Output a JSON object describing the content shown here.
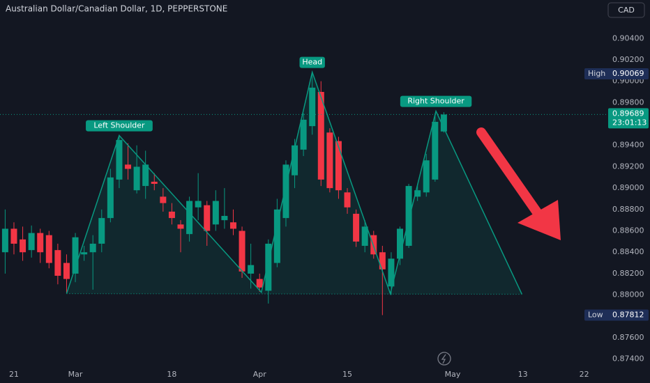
{
  "chart_data": {
    "type": "candlestick",
    "title": "Australian Dollar/Canadian Dollar, 1D, PEPPERSTONE",
    "currency": "CAD",
    "categories": [
      null,
      "21",
      null,
      null,
      null,
      null,
      null,
      null,
      "Mar",
      null,
      null,
      null,
      null,
      null,
      null,
      null,
      null,
      null,
      null,
      "18",
      null,
      null,
      null,
      null,
      null,
      null,
      null,
      null,
      null,
      "Apr",
      null,
      null,
      null,
      null,
      null,
      null,
      null,
      null,
      null,
      "15",
      null,
      null,
      null,
      null,
      null,
      null,
      null,
      null,
      null,
      null,
      null,
      "May",
      null,
      null,
      null,
      null,
      null,
      null,
      null,
      "13",
      null,
      null,
      null,
      null,
      null,
      null,
      "22"
    ],
    "open": [
      0.884,
      0.8862,
      0.8852,
      0.8842,
      0.8858,
      0.8856,
      0.8842,
      0.883,
      0.882,
      0.8838,
      0.884,
      0.8848,
      0.8872,
      0.8908,
      0.8922,
      0.8898,
      0.8902,
      0.8906,
      0.8892,
      0.8878,
      0.8866,
      0.8857,
      0.8882,
      0.8884,
      0.8866,
      0.887,
      0.8868,
      0.886,
      0.882,
      0.8815,
      0.8804,
      0.883,
      0.8872,
      0.8912,
      0.8936,
      0.8958,
      0.899,
      0.8952,
      0.8944,
      0.8896,
      0.8876,
      0.8846,
      0.8856,
      0.884,
      0.8808,
      0.8834,
      0.8846,
      0.8892,
      0.8896,
      0.8908,
      0.8953,
      null,
      null,
      null,
      null,
      null,
      null,
      null,
      null,
      null,
      null,
      null,
      null,
      null,
      null,
      null,
      null
    ],
    "high": [
      0.888,
      0.8868,
      0.8864,
      0.8865,
      0.8862,
      0.886,
      0.8848,
      0.8838,
      0.8858,
      0.8846,
      0.8856,
      0.888,
      0.8918,
      0.895,
      0.8942,
      0.894,
      0.8935,
      0.8914,
      0.89,
      0.8886,
      0.887,
      0.8892,
      0.8914,
      0.8888,
      0.8898,
      0.89,
      0.888,
      0.8864,
      0.8848,
      0.882,
      0.8852,
      0.889,
      0.8926,
      0.8946,
      0.897,
      0.90069,
      0.9,
      0.8956,
      0.8948,
      0.89,
      0.888,
      0.887,
      0.886,
      0.8846,
      0.884,
      0.8864,
      0.8904,
      0.8904,
      0.8932,
      0.897,
      0.8971,
      null,
      null,
      null,
      null,
      null,
      null,
      null,
      null,
      null,
      null,
      null,
      null,
      null,
      null,
      null,
      null
    ],
    "low": [
      0.882,
      0.8838,
      0.8832,
      0.8835,
      0.883,
      0.8825,
      0.881,
      0.8802,
      0.8812,
      0.8832,
      0.8805,
      0.884,
      0.8868,
      0.89,
      0.8908,
      0.8895,
      0.889,
      0.8898,
      0.8878,
      0.8866,
      0.884,
      0.885,
      0.887,
      0.8846,
      0.886,
      0.8862,
      0.8856,
      0.8816,
      0.8806,
      0.8803,
      0.8792,
      0.8826,
      0.8864,
      0.89,
      0.893,
      0.895,
      0.8902,
      0.8896,
      0.889,
      0.8876,
      0.8845,
      0.884,
      0.8834,
      0.87812,
      0.88,
      0.8828,
      0.8844,
      0.8888,
      0.8892,
      0.8906,
      0.8952,
      null,
      null,
      null,
      null,
      null,
      null,
      null,
      null,
      null,
      null,
      null,
      null,
      null,
      null,
      null,
      null
    ],
    "close": [
      0.8862,
      0.8848,
      0.884,
      0.8858,
      0.884,
      0.883,
      0.8818,
      0.8815,
      0.8854,
      0.884,
      0.8848,
      0.8872,
      0.891,
      0.8945,
      0.8918,
      0.892,
      0.8922,
      0.8904,
      0.8886,
      0.8872,
      0.8862,
      0.8888,
      0.8888,
      0.886,
      0.8888,
      0.8874,
      0.8862,
      0.8822,
      0.8828,
      0.8807,
      0.8848,
      0.888,
      0.8922,
      0.894,
      0.8964,
      0.8994,
      0.8908,
      0.89,
      0.8898,
      0.8882,
      0.885,
      0.8864,
      0.8838,
      0.8824,
      0.8834,
      0.8862,
      0.8902,
      0.8898,
      0.8926,
      0.8962,
      0.89689,
      null,
      null,
      null,
      null,
      null,
      null,
      null,
      null,
      null,
      null,
      null,
      null,
      null,
      null,
      null,
      null
    ],
    "up_color": "#089981",
    "down_color": "#f23645",
    "ylim": [
      0.8732,
      0.9076
    ],
    "yticks": [
      {
        "value": 0.904,
        "label": "0.90400"
      },
      {
        "value": 0.902,
        "label": "0.90200"
      },
      {
        "value": 0.9,
        "label": "0.90000"
      },
      {
        "value": 0.898,
        "label": "0.89800"
      },
      {
        "value": 0.894,
        "label": "0.89400"
      },
      {
        "value": 0.892,
        "label": "0.89200"
      },
      {
        "value": 0.89,
        "label": "0.89000"
      },
      {
        "value": 0.888,
        "label": "0.88800"
      },
      {
        "value": 0.886,
        "label": "0.88600"
      },
      {
        "value": 0.884,
        "label": "0.88400"
      },
      {
        "value": 0.882,
        "label": "0.88200"
      },
      {
        "value": 0.88,
        "label": "0.88000"
      },
      {
        "value": 0.876,
        "label": "0.87600"
      },
      {
        "value": 0.874,
        "label": "0.87400"
      }
    ],
    "last_price": {
      "value": 0.89689,
      "label": "0.89689"
    },
    "countdown": "23:01:13",
    "high_marker": {
      "name": "High",
      "value": 0.90069,
      "label": "0.90069"
    },
    "low_marker": {
      "name": "Low",
      "value": 0.87812,
      "label": "0.87812"
    },
    "pattern": {
      "color": "#089981",
      "points": [
        {
          "x": 7,
          "y": 0.88013
        },
        {
          "x": 13,
          "y": 0.89492,
          "label": "Left Shoulder"
        },
        {
          "x": 29.2,
          "y": 0.88026
        },
        {
          "x": 35,
          "y": 0.90085,
          "label": "Head"
        },
        {
          "x": 43.9,
          "y": 0.88013
        },
        {
          "x": 49.1,
          "y": 0.8972,
          "label": "Right Shoulder"
        },
        {
          "x": 58.9,
          "y": 0.88007
        }
      ]
    }
  }
}
